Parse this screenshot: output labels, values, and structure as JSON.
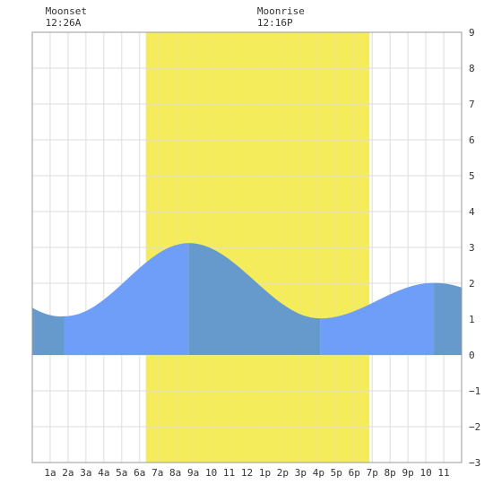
{
  "chart_data": {
    "type": "area",
    "title": "",
    "xlabel": "",
    "ylabel": "",
    "xlim": [
      0,
      24
    ],
    "ylim": [
      -3,
      9
    ],
    "grid": true,
    "x_ticks": [
      {
        "x": 1,
        "label": "1a"
      },
      {
        "x": 2,
        "label": "2a"
      },
      {
        "x": 3,
        "label": "3a"
      },
      {
        "x": 4,
        "label": "4a"
      },
      {
        "x": 5,
        "label": "5a"
      },
      {
        "x": 6,
        "label": "6a"
      },
      {
        "x": 7,
        "label": "7a"
      },
      {
        "x": 8,
        "label": "8a"
      },
      {
        "x": 9,
        "label": "9a"
      },
      {
        "x": 10,
        "label": "10"
      },
      {
        "x": 11,
        "label": "11"
      },
      {
        "x": 12,
        "label": "12"
      },
      {
        "x": 13,
        "label": "1p"
      },
      {
        "x": 14,
        "label": "2p"
      },
      {
        "x": 15,
        "label": "3p"
      },
      {
        "x": 16,
        "label": "4p"
      },
      {
        "x": 17,
        "label": "5p"
      },
      {
        "x": 18,
        "label": "6p"
      },
      {
        "x": 19,
        "label": "7p"
      },
      {
        "x": 20,
        "label": "8p"
      },
      {
        "x": 21,
        "label": "9p"
      },
      {
        "x": 22,
        "label": "10"
      },
      {
        "x": 23,
        "label": "11"
      }
    ],
    "y_ticks": [
      -3,
      -2,
      -1,
      0,
      1,
      2,
      3,
      4,
      5,
      6,
      7,
      8,
      9
    ],
    "daylight": {
      "start": 6.35,
      "end": 18.85,
      "color": "#f5ec5c"
    },
    "tide_extremes": [
      {
        "x": 1.8,
        "y": 1.08
      },
      {
        "x": 8.75,
        "y": 3.12
      },
      {
        "x": 16.1,
        "y": 1.02
      },
      {
        "x": 22.45,
        "y": 2.01
      }
    ],
    "tide_start_y": 1.32,
    "tide_end_y": 1.88,
    "phase_boundaries": [
      1.8,
      8.75,
      16.1,
      22.45
    ],
    "colors": {
      "rising": "#6f9ef8",
      "falling": "#6699cc",
      "grid": "#dddddd",
      "border": "#999999"
    },
    "annotations": [
      {
        "title": "Moonset",
        "time": "12:26A",
        "x": 0.43
      },
      {
        "title": "Moonrise",
        "time": "12:16P",
        "x": 12.27
      }
    ]
  }
}
